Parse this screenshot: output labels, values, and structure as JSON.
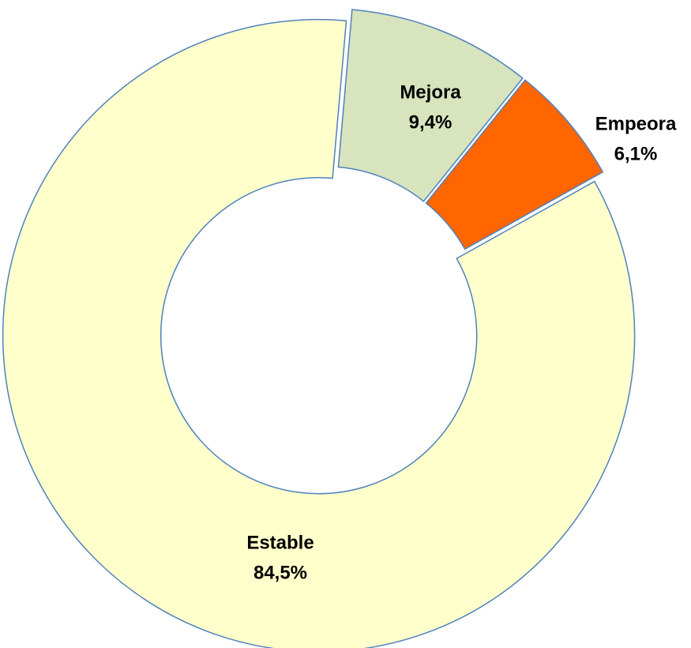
{
  "chart_data": {
    "type": "donut",
    "categories": [
      "Mejora",
      "Empeora",
      "Estable"
    ],
    "values": [
      9.4,
      6.1,
      84.5
    ],
    "value_labels": [
      "9,4%",
      "6,1%",
      "84,5%"
    ],
    "colors": [
      "#d7e4bd",
      "#ff6600",
      "#ffffcc"
    ]
  }
}
